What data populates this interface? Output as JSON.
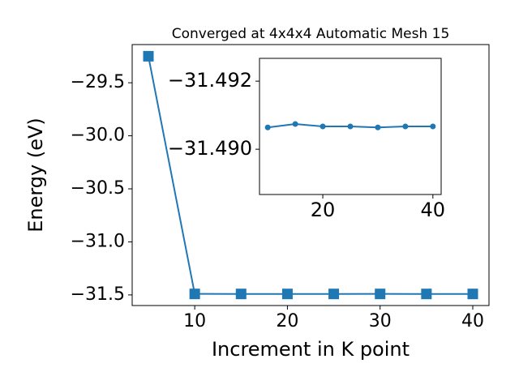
{
  "chart_data": [
    {
      "type": "line",
      "title": "Converged at 4x4x4 Automatic Mesh 15",
      "x_label": "Increment in K point",
      "y_label": "Energy (eV)",
      "x": [
        5,
        10,
        15,
        20,
        25,
        30,
        35,
        40
      ],
      "series": [
        {
          "color": "#1f77b4",
          "marker": "square",
          "values": [
            -29.25,
            -31.4906,
            -31.4907,
            -31.4907,
            -31.4907,
            -31.4906,
            -31.4907,
            -31.4907
          ]
        }
      ],
      "xlim": [
        3.25,
        41.75
      ],
      "xticks": [
        10,
        20,
        30,
        40
      ],
      "ylim": [
        -31.6,
        -29.14
      ],
      "yticks": [
        {
          "value": -29.5,
          "label": "−29.5"
        },
        {
          "value": -30.0,
          "label": "−30.0"
        },
        {
          "value": -30.5,
          "label": "−30.5"
        },
        {
          "value": -31.0,
          "label": "−31.0"
        },
        {
          "value": -31.5,
          "label": "−31.5"
        }
      ]
    },
    {
      "type": "line",
      "x": [
        10,
        15,
        20,
        25,
        30,
        35,
        40
      ],
      "series": [
        {
          "color": "#1f77b4",
          "marker": "circle",
          "values": [
            -31.49064,
            -31.49074,
            -31.49067,
            -31.49067,
            -31.49064,
            -31.49067,
            -31.49067
          ]
        }
      ],
      "xlim": [
        8.5,
        41.5
      ],
      "xticks": [
        20,
        40
      ],
      "ylim": [
        -31.48867,
        -31.49267
      ],
      "yticks": [
        {
          "value": -31.492,
          "label": "−31.492"
        },
        {
          "value": -31.49,
          "label": "−31.490"
        }
      ]
    }
  ]
}
